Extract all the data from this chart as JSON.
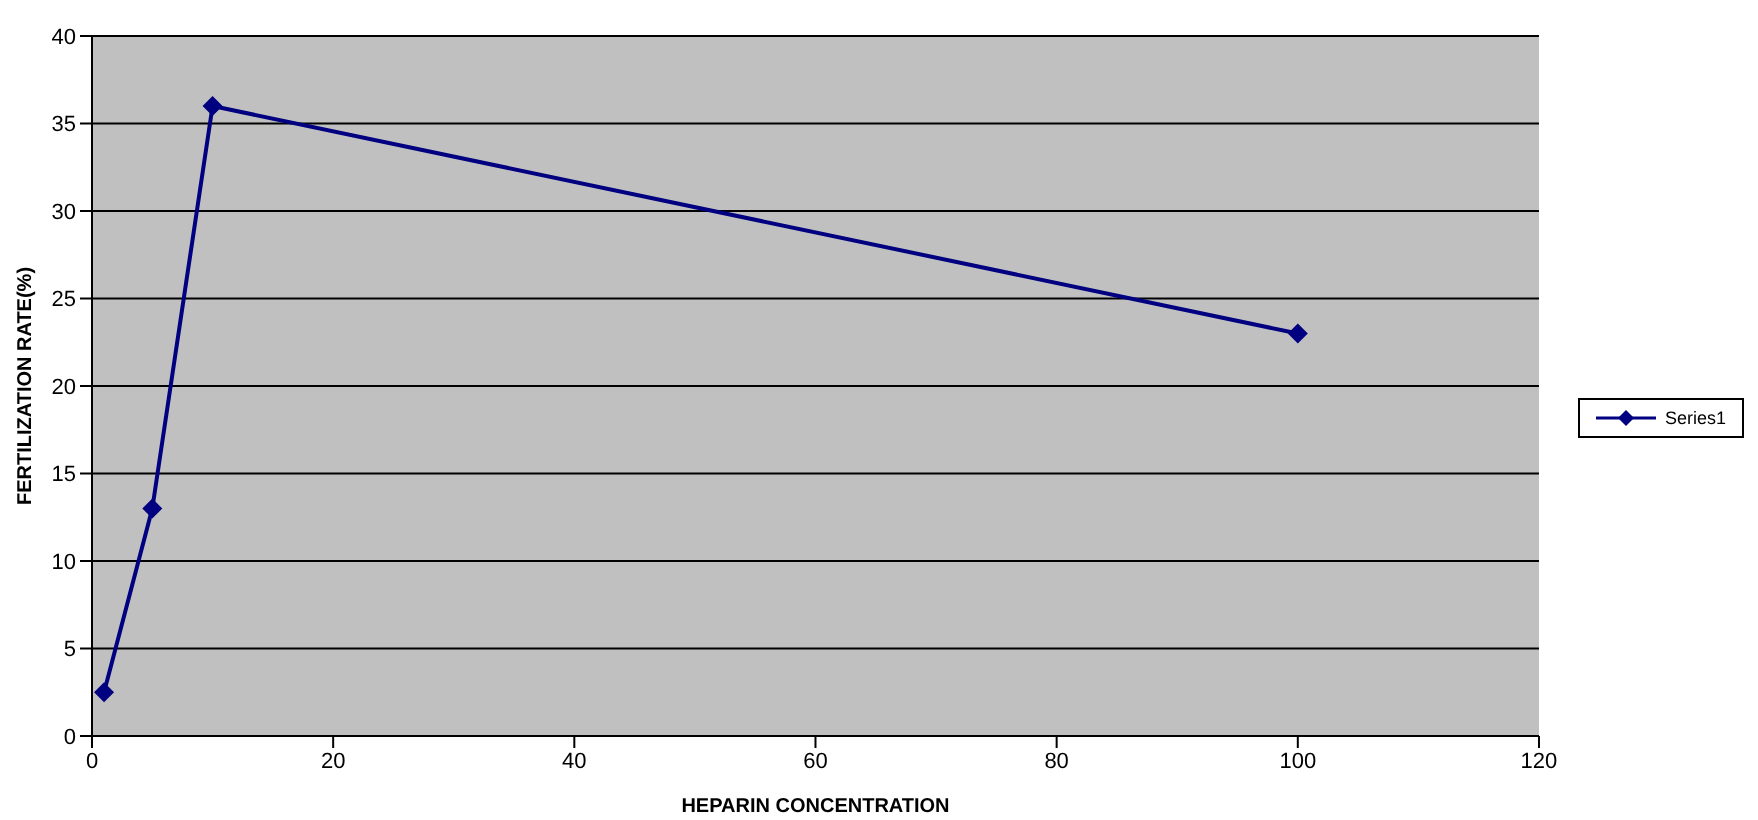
{
  "chart_data": {
    "type": "line",
    "xlabel": "HEPARIN CONCENTRATION",
    "ylabel": "FERTILIZATION RATE(%)",
    "x": [
      1,
      5,
      10,
      100
    ],
    "series": [
      {
        "name": "Series1",
        "color": "#000080",
        "values": [
          2.5,
          13,
          36,
          23
        ]
      }
    ],
    "xlim": [
      0,
      120
    ],
    "xticks": [
      0,
      20,
      40,
      60,
      80,
      100,
      120
    ],
    "ylim": [
      0,
      40
    ],
    "yticks": [
      0,
      5,
      10,
      15,
      20,
      25,
      30,
      35,
      40
    ],
    "grid": "y",
    "legend": "right",
    "marker": "diamond",
    "line_style": "solid"
  }
}
